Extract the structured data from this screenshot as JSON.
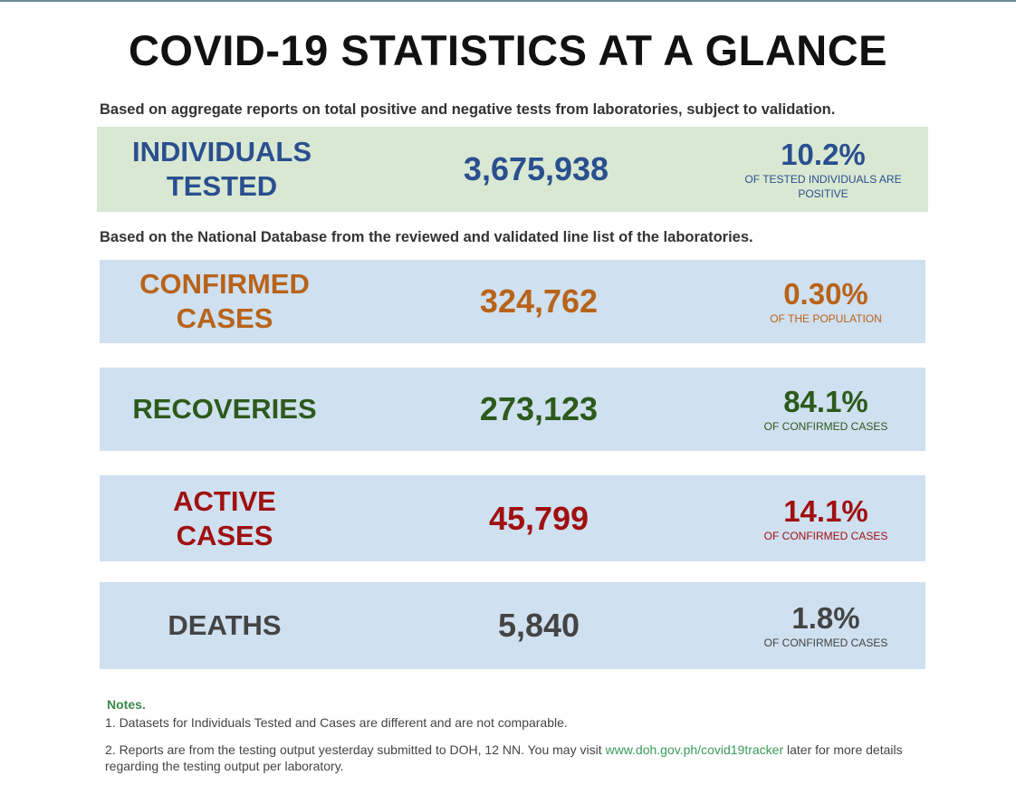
{
  "title": "COVID-19 STATISTICS AT A GLANCE",
  "sections": [
    {
      "caption": "Based on aggregate reports on total positive and negative tests from laboratories, subject to validation.",
      "rows": [
        {
          "label_lines": [
            "INDIVIDUALS",
            "TESTED"
          ],
          "value": "3,675,938",
          "percent": "10.2%",
          "note": "OF TESTED INDIVIDUALS ARE POSITIVE",
          "color": "#2a4f8f",
          "background": "#d9e8d2"
        }
      ]
    },
    {
      "caption": "Based on the National Database from the reviewed and validated line list of the laboratories.",
      "rows": [
        {
          "label_lines": [
            "CONFIRMED",
            "CASES"
          ],
          "value": "324,762",
          "percent": "0.30%",
          "note": "OF THE POPULATION",
          "color": "#b8631a",
          "background": "#cfe0f0"
        },
        {
          "label_lines": [
            "RECOVERIES"
          ],
          "value": "273,123",
          "percent": "84.1%",
          "note": "OF CONFIRMED CASES",
          "color": "#2d5a1b",
          "background": "#cfe0f0"
        },
        {
          "label_lines": [
            "ACTIVE",
            "CASES"
          ],
          "value": "45,799",
          "percent": "14.1%",
          "note": "OF CONFIRMED CASES",
          "color": "#a01010",
          "background": "#cfe0f0"
        },
        {
          "label_lines": [
            "DEATHS"
          ],
          "value": "5,840",
          "percent": "1.8%",
          "note": "OF CONFIRMED CASES",
          "color": "#444444",
          "background": "#cfe0f0"
        }
      ]
    }
  ],
  "notes": {
    "heading": "Notes.",
    "items": [
      {
        "text": "1. Datasets for Individuals Tested and Cases are different and are not comparable."
      },
      {
        "text": "2.  Reports are from the testing output yesterday submitted to DOH, 12 NN. You may visit ",
        "link": "www.doh.gov.ph/covid19tracker",
        "after": " later for more details regarding the testing output per laboratory."
      }
    ]
  }
}
